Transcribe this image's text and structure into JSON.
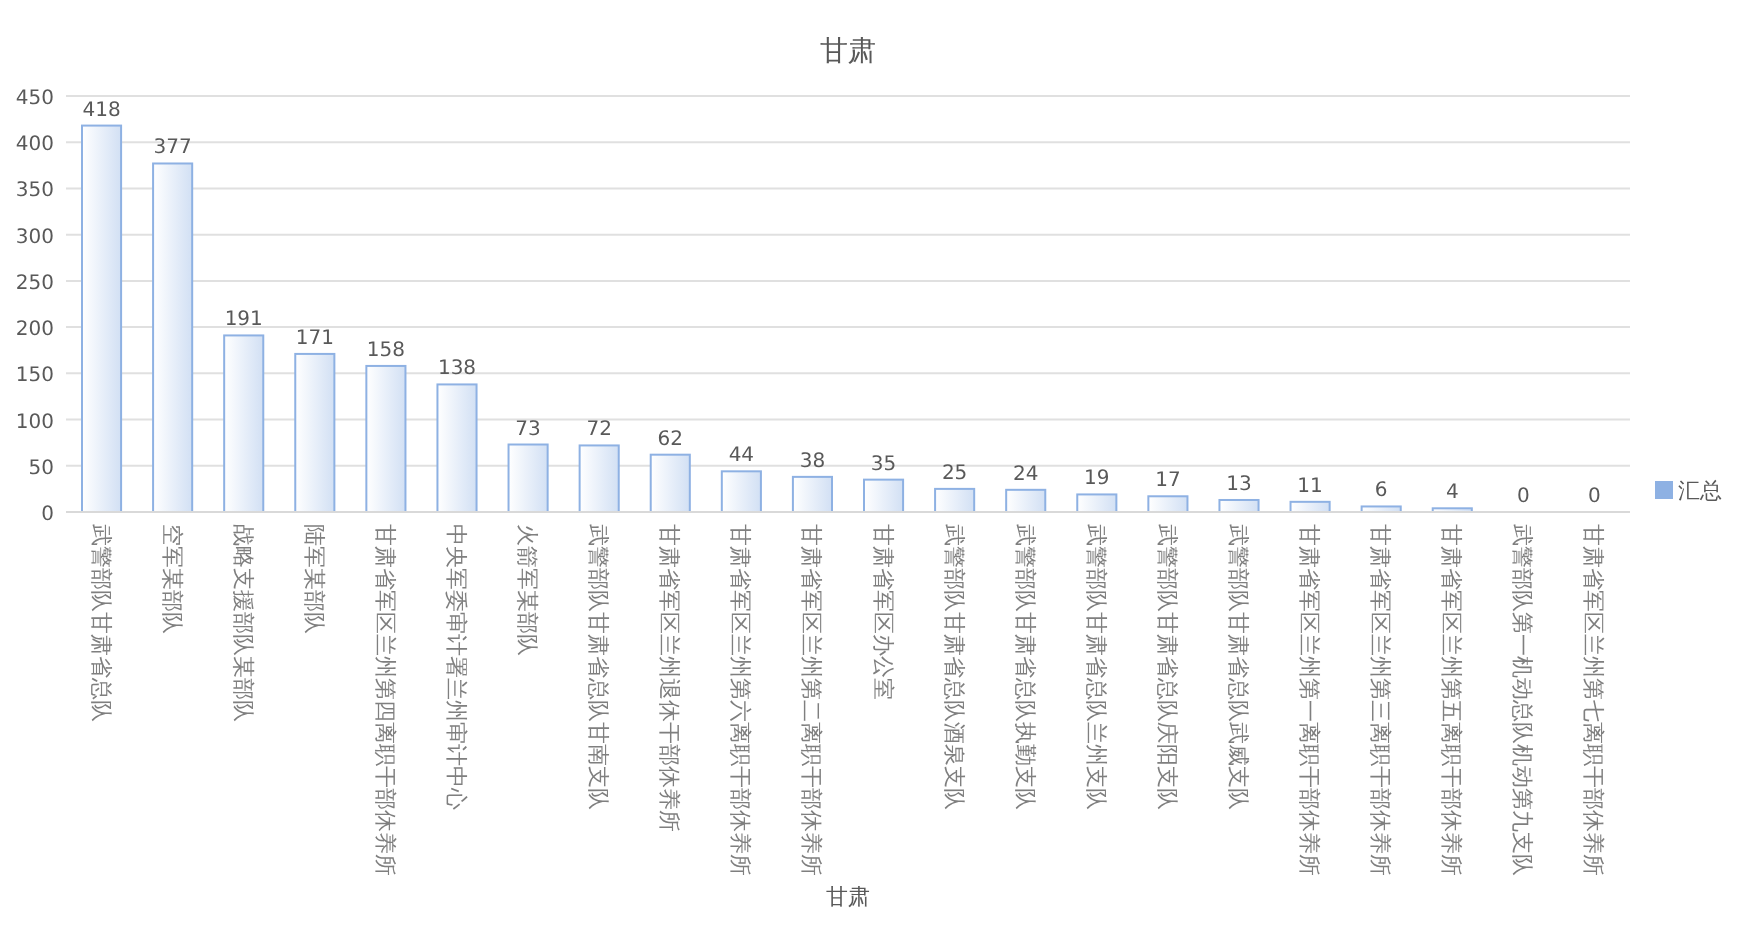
{
  "chart_data": {
    "type": "bar",
    "title": "甘肃",
    "xlabel": "甘肃",
    "categories": [
      "武警部队甘肃省总队",
      "空军某部队",
      "战略支援部队某部队",
      "陆军某部队",
      "甘肃省军区兰州第四离职干部休养所",
      "中央军委审计署兰州审计中心",
      "火箭军某部队",
      "武警部队甘肃省总队甘南支队",
      "甘肃省军区兰州退休干部休养所",
      "甘肃省军区兰州第六离职干部休养所",
      "甘肃省军区兰州第二离职干部休养所",
      "甘肃省军区办公室",
      "武警部队甘肃省总队酒泉支队",
      "武警部队甘肃省总队执勤支队",
      "武警部队甘肃省总队兰州支队",
      "武警部队甘肃省总队庆阳支队",
      "武警部队甘肃省总队武威支队",
      "甘肃省军区兰州第一离职干部休养所",
      "甘肃省军区兰州第三离职干部休养所",
      "甘肃省军区兰州第五离职干部休养所",
      "武警部队第一机动总队机动第九支队",
      "甘肃省军区兰州第七离职干部休养所"
    ],
    "series": [
      {
        "name": "汇总",
        "color": "#8eb1e3",
        "values": [
          418,
          377,
          191,
          171,
          158,
          138,
          73,
          72,
          62,
          44,
          38,
          35,
          25,
          24,
          19,
          17,
          13,
          11,
          6,
          4,
          0,
          0
        ]
      }
    ],
    "data_labels": true,
    "ylim": [
      0,
      450
    ],
    "yticks": [
      0,
      50,
      100,
      150,
      200,
      250,
      300,
      350,
      400,
      450
    ],
    "grid": "y",
    "legend": "right"
  }
}
